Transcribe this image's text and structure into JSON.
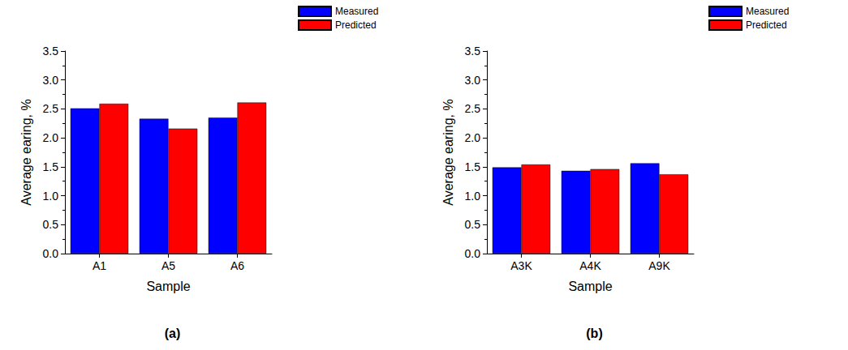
{
  "chart_data": [
    {
      "type": "bar",
      "title": "(a)",
      "x_label": "Sample",
      "y_label": "Average earing, %",
      "categories": [
        "A1",
        "A5",
        "A6"
      ],
      "series": [
        {
          "name": "Measured",
          "color": "#0000ff",
          "values": [
            2.51,
            2.33,
            2.35
          ]
        },
        {
          "name": "Predicted",
          "color": "#ff0000",
          "values": [
            2.59,
            2.16,
            2.61
          ]
        }
      ],
      "ylim": [
        0,
        3.5
      ],
      "yticks": [
        {
          "value": 0,
          "label": "0.0"
        },
        0.5,
        {
          "value": 1,
          "label": "1.0"
        },
        1.5,
        {
          "value": 2,
          "label": "2.0"
        },
        2.5,
        {
          "value": 3,
          "label": "3.0"
        },
        3.5
      ],
      "legend": "top-right",
      "grid": false
    },
    {
      "type": "bar",
      "title": "(b)",
      "x_label": "Sample",
      "y_label": "Average earing, %",
      "categories": [
        "A3K",
        "A4K",
        "A9K"
      ],
      "series": [
        {
          "name": "Measured",
          "color": "#0000ff",
          "values": [
            1.49,
            1.43,
            1.56
          ]
        },
        {
          "name": "Predicted",
          "color": "#ff0000",
          "values": [
            1.54,
            1.46,
            1.37
          ]
        }
      ],
      "ylim": [
        0,
        3.5
      ],
      "yticks": [
        {
          "value": 0,
          "label": "0.0"
        },
        0.5,
        {
          "value": 1,
          "label": "1.0"
        },
        1.5,
        {
          "value": 2,
          "label": "2.0"
        },
        2.5,
        {
          "value": 3,
          "label": "3.0"
        },
        3.5
      ],
      "legend": "top-right",
      "grid": false
    }
  ]
}
